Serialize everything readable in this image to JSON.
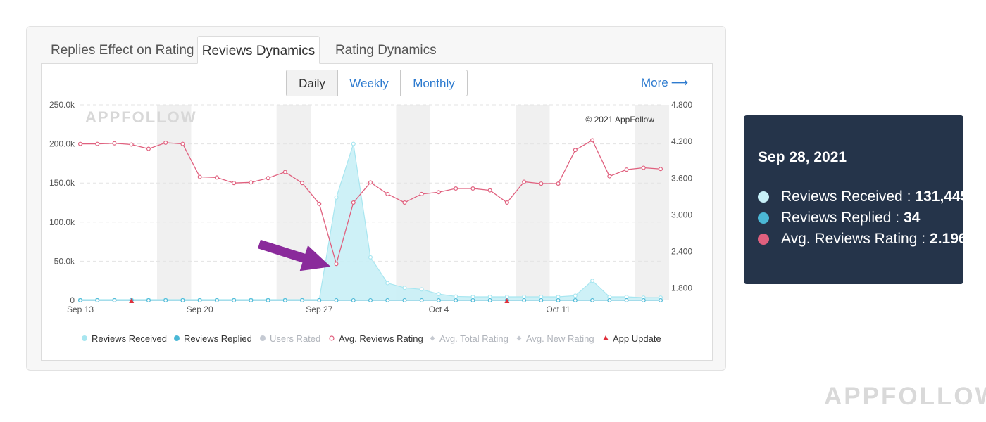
{
  "tabs": [
    {
      "label": "Replies Effect on Rating",
      "active": false
    },
    {
      "label": "Reviews Dynamics",
      "active": true
    },
    {
      "label": "Rating Dynamics",
      "active": false
    }
  ],
  "period": {
    "options": [
      "Daily",
      "Weekly",
      "Monthly"
    ],
    "selected": "Daily"
  },
  "more_link": {
    "label": "More",
    "icon": "arrow-right-icon"
  },
  "copyright": "© 2021 AppFollow",
  "watermark": "APPFOLLOW",
  "colors": {
    "received": "#a8e6f0",
    "received_fill": "#c9eff6",
    "replied": "#4bb8d6",
    "users_rated": "#b9bfca",
    "rating": "#e0607e",
    "avg_total": "#c5c9d0",
    "avg_new": "#c5c9d0",
    "app_update": "#e0303c",
    "arrow": "#8a2a9b",
    "tooltip_bg": "#25344a",
    "weekend_band": "#f0f0f0"
  },
  "chart_data": {
    "type": "line",
    "x": [
      "Sep 13",
      "Sep 14",
      "Sep 15",
      "Sep 16",
      "Sep 17",
      "Sep 18",
      "Sep 19",
      "Sep 20",
      "Sep 21",
      "Sep 22",
      "Sep 23",
      "Sep 24",
      "Sep 25",
      "Sep 26",
      "Sep 27",
      "Sep 28",
      "Sep 29",
      "Sep 30",
      "Oct 1",
      "Oct 2",
      "Oct 3",
      "Oct 4",
      "Oct 5",
      "Oct 6",
      "Oct 7",
      "Oct 8",
      "Oct 9",
      "Oct 10",
      "Oct 11",
      "Oct 12",
      "Oct 13",
      "Oct 14",
      "Oct 15",
      "Oct 16",
      "Oct 17"
    ],
    "x_tick_labels": [
      "Sep 13",
      "Sep 20",
      "Sep 27",
      "Oct 4",
      "Oct 11"
    ],
    "y_left": {
      "ticks": [
        "0",
        "50.0k",
        "100.0k",
        "150.0k",
        "200.0k",
        "250.0k"
      ],
      "range": [
        0,
        250000
      ]
    },
    "y_right": {
      "ticks": [
        "1.800",
        "2.400",
        "3.000",
        "3.600",
        "4.200",
        "4.800"
      ],
      "range": [
        1.6,
        4.8
      ]
    },
    "weekend_bands": [
      [
        "Sep 18",
        "Sep 19"
      ],
      [
        "Sep 25",
        "Sep 26"
      ],
      [
        "Oct 2",
        "Oct 3"
      ],
      [
        "Oct 9",
        "Oct 10"
      ],
      [
        "Oct 16",
        "Oct 17"
      ]
    ],
    "series": [
      {
        "name": "Reviews Received",
        "axis": "left",
        "style": "area",
        "values": [
          900,
          900,
          900,
          900,
          900,
          900,
          900,
          900,
          900,
          900,
          900,
          900,
          900,
          900,
          900,
          131445,
          200000,
          55000,
          22000,
          16000,
          14000,
          8000,
          5000,
          4500,
          4500,
          4500,
          4500,
          4500,
          4500,
          6000,
          25000,
          4500,
          4500,
          3500,
          3500
        ]
      },
      {
        "name": "Reviews Replied",
        "axis": "left",
        "style": "line",
        "values": [
          50,
          50,
          50,
          50,
          50,
          50,
          50,
          50,
          50,
          50,
          50,
          50,
          50,
          50,
          50,
          34,
          50,
          50,
          50,
          50,
          50,
          50,
          50,
          50,
          50,
          50,
          50,
          50,
          50,
          50,
          50,
          50,
          50,
          50,
          50
        ]
      },
      {
        "name": "Avg. Reviews Rating",
        "axis": "right",
        "style": "line",
        "values": [
          4.16,
          4.16,
          4.17,
          4.15,
          4.08,
          4.18,
          4.16,
          3.62,
          3.61,
          3.52,
          3.53,
          3.6,
          3.7,
          3.52,
          3.18,
          2.196,
          3.2,
          3.53,
          3.34,
          3.2,
          3.34,
          3.37,
          3.43,
          3.43,
          3.4,
          3.2,
          3.54,
          3.51,
          3.51,
          4.06,
          4.22,
          3.63,
          3.74,
          3.77,
          3.75
        ]
      }
    ],
    "app_updates": [
      "Sep 16",
      "Oct 8"
    ],
    "legend": [
      {
        "label": "Reviews Received",
        "marker": "dot",
        "enabled": true
      },
      {
        "label": "Reviews Replied",
        "marker": "dot",
        "enabled": true
      },
      {
        "label": "Users Rated",
        "marker": "dot",
        "enabled": false
      },
      {
        "label": "Avg. Reviews Rating",
        "marker": "ring",
        "enabled": true
      },
      {
        "label": "Avg. Total Rating",
        "marker": "diamond",
        "enabled": false
      },
      {
        "label": "Avg. New Rating",
        "marker": "diamond",
        "enabled": false
      },
      {
        "label": "App Update",
        "marker": "triangle",
        "enabled": true
      }
    ],
    "legend_position": "bottom",
    "grid": true,
    "highlighted_point": "Sep 28"
  },
  "tooltip": {
    "date": "Sep 28, 2021",
    "rows": [
      {
        "label": "Reviews Received :",
        "value": "131,445",
        "color": "#c7f0f8"
      },
      {
        "label": "Reviews Replied :",
        "value": "34",
        "color": "#4bb8d6"
      },
      {
        "label": "Avg. Reviews Rating :",
        "value": "2.196",
        "color": "#e0607e"
      }
    ]
  }
}
